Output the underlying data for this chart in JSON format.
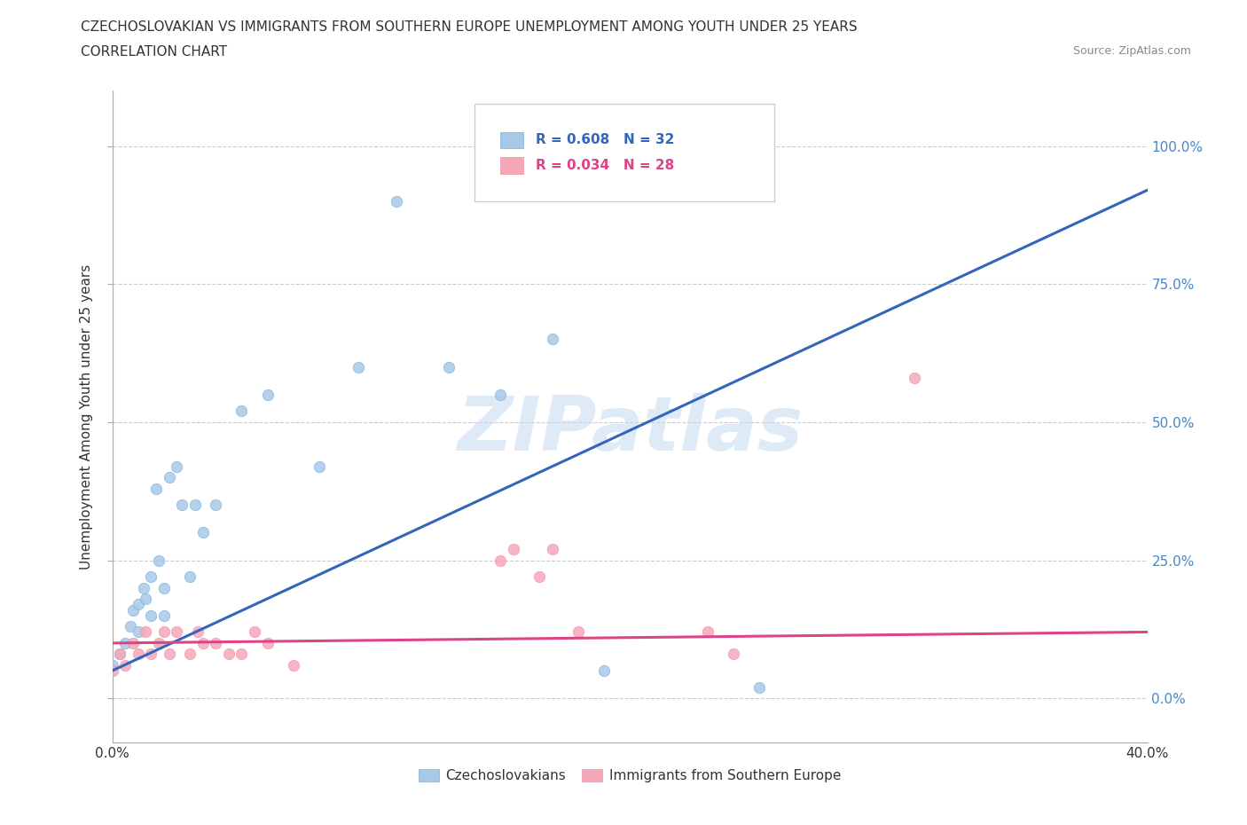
{
  "title_line1": "CZECHOSLOVAKIAN VS IMMIGRANTS FROM SOUTHERN EUROPE UNEMPLOYMENT AMONG YOUTH UNDER 25 YEARS",
  "title_line2": "CORRELATION CHART",
  "source_text": "Source: ZipAtlas.com",
  "ylabel": "Unemployment Among Youth under 25 years",
  "xlim": [
    0.0,
    0.4
  ],
  "ylim": [
    -0.08,
    1.1
  ],
  "ytick_values": [
    0.0,
    0.25,
    0.5,
    0.75,
    1.0
  ],
  "legend_r1": "R = 0.608",
  "legend_n1": "N = 32",
  "legend_r2": "R = 0.034",
  "legend_n2": "N = 28",
  "blue_color": "#a8c8e8",
  "pink_color": "#f4a8b8",
  "blue_line_color": "#3366bb",
  "pink_line_color": "#dd4488",
  "blue_fill_color": "#7ab0d8",
  "pink_fill_color": "#f090a8",
  "watermark_color": "#c8ddf0",
  "background_color": "#ffffff",
  "grid_color": "#cccccc",
  "right_tick_color": "#4488cc",
  "blue_scatter_x": [
    0.0,
    0.003,
    0.005,
    0.007,
    0.008,
    0.01,
    0.01,
    0.012,
    0.013,
    0.015,
    0.015,
    0.017,
    0.018,
    0.02,
    0.02,
    0.022,
    0.025,
    0.027,
    0.03,
    0.032,
    0.035,
    0.04,
    0.05,
    0.06,
    0.08,
    0.095,
    0.11,
    0.13,
    0.15,
    0.17,
    0.19,
    0.25
  ],
  "blue_scatter_y": [
    0.06,
    0.08,
    0.1,
    0.13,
    0.16,
    0.17,
    0.12,
    0.2,
    0.18,
    0.22,
    0.15,
    0.38,
    0.25,
    0.2,
    0.15,
    0.4,
    0.42,
    0.35,
    0.22,
    0.35,
    0.3,
    0.35,
    0.52,
    0.55,
    0.42,
    0.6,
    0.9,
    0.6,
    0.55,
    0.65,
    0.05,
    0.02
  ],
  "pink_scatter_x": [
    0.0,
    0.003,
    0.005,
    0.008,
    0.01,
    0.013,
    0.015,
    0.018,
    0.02,
    0.022,
    0.025,
    0.03,
    0.033,
    0.035,
    0.04,
    0.045,
    0.05,
    0.055,
    0.06,
    0.07,
    0.15,
    0.155,
    0.165,
    0.17,
    0.18,
    0.23,
    0.24,
    0.31
  ],
  "pink_scatter_y": [
    0.05,
    0.08,
    0.06,
    0.1,
    0.08,
    0.12,
    0.08,
    0.1,
    0.12,
    0.08,
    0.12,
    0.08,
    0.12,
    0.1,
    0.1,
    0.08,
    0.08,
    0.12,
    0.1,
    0.06,
    0.25,
    0.27,
    0.22,
    0.27,
    0.12,
    0.12,
    0.08,
    0.58
  ],
  "blue_line_x0": 0.0,
  "blue_line_y0": 0.05,
  "blue_line_x1": 0.4,
  "blue_line_y1": 0.92,
  "pink_line_x0": 0.0,
  "pink_line_y0": 0.1,
  "pink_line_x1": 0.4,
  "pink_line_y1": 0.12
}
